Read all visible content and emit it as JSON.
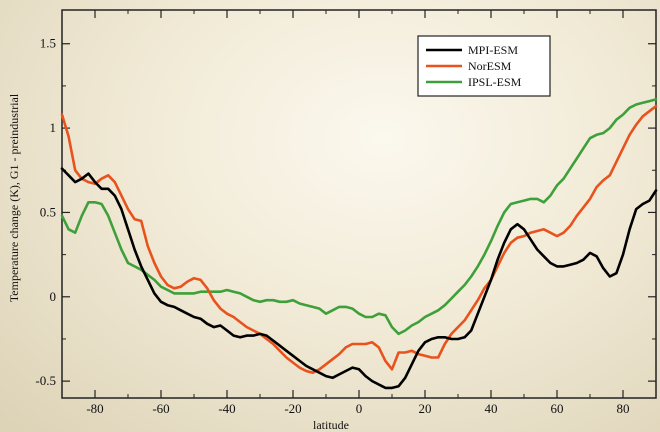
{
  "chart_data": {
    "type": "line",
    "title": "",
    "xlabel": "latitude",
    "ylabel": "Temperature change (K), G1 - preindustrial",
    "xlim": [
      -90,
      90
    ],
    "ylim": [
      -0.6,
      1.7
    ],
    "x_ticks": [
      -80,
      -60,
      -40,
      -20,
      0,
      20,
      40,
      60,
      80
    ],
    "x_tick_labels": [
      "-80",
      "-60",
      "-40",
      "-20",
      "0",
      "20",
      "40",
      "60",
      "80"
    ],
    "y_ticks": [
      -0.5,
      0,
      0.5,
      1,
      1.5
    ],
    "y_tick_labels": [
      "-0.5",
      "0",
      "0.5",
      "1",
      "1.5"
    ],
    "grid": false,
    "legend_position": "top-right",
    "series": [
      {
        "name": "MPI-ESM",
        "color": "#000000",
        "points": [
          [
            -90,
            0.76
          ],
          [
            -88,
            0.72
          ],
          [
            -86,
            0.68
          ],
          [
            -84,
            0.7
          ],
          [
            -82,
            0.73
          ],
          [
            -80,
            0.68
          ],
          [
            -78,
            0.64
          ],
          [
            -76,
            0.64
          ],
          [
            -74,
            0.6
          ],
          [
            -72,
            0.52
          ],
          [
            -70,
            0.4
          ],
          [
            -68,
            0.28
          ],
          [
            -66,
            0.18
          ],
          [
            -64,
            0.1
          ],
          [
            -62,
            0.02
          ],
          [
            -60,
            -0.03
          ],
          [
            -58,
            -0.05
          ],
          [
            -56,
            -0.06
          ],
          [
            -54,
            -0.08
          ],
          [
            -52,
            -0.1
          ],
          [
            -50,
            -0.12
          ],
          [
            -48,
            -0.13
          ],
          [
            -46,
            -0.16
          ],
          [
            -44,
            -0.18
          ],
          [
            -42,
            -0.17
          ],
          [
            -40,
            -0.2
          ],
          [
            -38,
            -0.23
          ],
          [
            -36,
            -0.24
          ],
          [
            -34,
            -0.23
          ],
          [
            -32,
            -0.23
          ],
          [
            -30,
            -0.22
          ],
          [
            -28,
            -0.23
          ],
          [
            -26,
            -0.26
          ],
          [
            -24,
            -0.29
          ],
          [
            -22,
            -0.32
          ],
          [
            -20,
            -0.35
          ],
          [
            -18,
            -0.38
          ],
          [
            -16,
            -0.41
          ],
          [
            -14,
            -0.43
          ],
          [
            -12,
            -0.45
          ],
          [
            -10,
            -0.47
          ],
          [
            -8,
            -0.48
          ],
          [
            -6,
            -0.46
          ],
          [
            -4,
            -0.44
          ],
          [
            -2,
            -0.42
          ],
          [
            0,
            -0.43
          ],
          [
            2,
            -0.47
          ],
          [
            4,
            -0.5
          ],
          [
            6,
            -0.52
          ],
          [
            8,
            -0.54
          ],
          [
            10,
            -0.54
          ],
          [
            12,
            -0.53
          ],
          [
            14,
            -0.48
          ],
          [
            16,
            -0.4
          ],
          [
            18,
            -0.32
          ],
          [
            20,
            -0.27
          ],
          [
            22,
            -0.25
          ],
          [
            24,
            -0.24
          ],
          [
            26,
            -0.24
          ],
          [
            28,
            -0.25
          ],
          [
            30,
            -0.25
          ],
          [
            32,
            -0.24
          ],
          [
            34,
            -0.2
          ],
          [
            36,
            -0.1
          ],
          [
            38,
            0.0
          ],
          [
            40,
            0.1
          ],
          [
            42,
            0.22
          ],
          [
            44,
            0.32
          ],
          [
            46,
            0.4
          ],
          [
            48,
            0.43
          ],
          [
            50,
            0.4
          ],
          [
            52,
            0.34
          ],
          [
            54,
            0.28
          ],
          [
            56,
            0.24
          ],
          [
            58,
            0.2
          ],
          [
            60,
            0.18
          ],
          [
            62,
            0.18
          ],
          [
            64,
            0.19
          ],
          [
            66,
            0.2
          ],
          [
            68,
            0.22
          ],
          [
            70,
            0.26
          ],
          [
            72,
            0.24
          ],
          [
            74,
            0.17
          ],
          [
            76,
            0.12
          ],
          [
            78,
            0.14
          ],
          [
            80,
            0.25
          ],
          [
            82,
            0.4
          ],
          [
            84,
            0.52
          ],
          [
            86,
            0.55
          ],
          [
            88,
            0.57
          ],
          [
            90,
            0.63
          ]
        ]
      },
      {
        "name": "NorESM",
        "color": "#e8521d",
        "points": [
          [
            -90,
            1.08
          ],
          [
            -88,
            0.95
          ],
          [
            -86,
            0.75
          ],
          [
            -84,
            0.7
          ],
          [
            -82,
            0.68
          ],
          [
            -80,
            0.67
          ],
          [
            -78,
            0.7
          ],
          [
            -76,
            0.72
          ],
          [
            -74,
            0.68
          ],
          [
            -72,
            0.6
          ],
          [
            -70,
            0.52
          ],
          [
            -68,
            0.46
          ],
          [
            -66,
            0.45
          ],
          [
            -64,
            0.3
          ],
          [
            -62,
            0.2
          ],
          [
            -60,
            0.12
          ],
          [
            -58,
            0.07
          ],
          [
            -56,
            0.05
          ],
          [
            -54,
            0.06
          ],
          [
            -52,
            0.09
          ],
          [
            -50,
            0.11
          ],
          [
            -48,
            0.1
          ],
          [
            -46,
            0.05
          ],
          [
            -44,
            -0.02
          ],
          [
            -42,
            -0.07
          ],
          [
            -40,
            -0.1
          ],
          [
            -38,
            -0.12
          ],
          [
            -36,
            -0.15
          ],
          [
            -34,
            -0.18
          ],
          [
            -32,
            -0.2
          ],
          [
            -30,
            -0.22
          ],
          [
            -28,
            -0.25
          ],
          [
            -26,
            -0.28
          ],
          [
            -24,
            -0.32
          ],
          [
            -22,
            -0.36
          ],
          [
            -20,
            -0.39
          ],
          [
            -18,
            -0.42
          ],
          [
            -16,
            -0.44
          ],
          [
            -14,
            -0.45
          ],
          [
            -12,
            -0.43
          ],
          [
            -10,
            -0.4
          ],
          [
            -8,
            -0.37
          ],
          [
            -6,
            -0.34
          ],
          [
            -4,
            -0.3
          ],
          [
            -2,
            -0.28
          ],
          [
            0,
            -0.28
          ],
          [
            2,
            -0.28
          ],
          [
            4,
            -0.27
          ],
          [
            6,
            -0.3
          ],
          [
            8,
            -0.38
          ],
          [
            10,
            -0.43
          ],
          [
            12,
            -0.33
          ],
          [
            14,
            -0.33
          ],
          [
            16,
            -0.32
          ],
          [
            18,
            -0.34
          ],
          [
            20,
            -0.35
          ],
          [
            22,
            -0.36
          ],
          [
            24,
            -0.36
          ],
          [
            26,
            -0.28
          ],
          [
            28,
            -0.22
          ],
          [
            30,
            -0.18
          ],
          [
            32,
            -0.14
          ],
          [
            34,
            -0.08
          ],
          [
            36,
            -0.02
          ],
          [
            38,
            0.05
          ],
          [
            40,
            0.1
          ],
          [
            42,
            0.18
          ],
          [
            44,
            0.26
          ],
          [
            46,
            0.32
          ],
          [
            48,
            0.35
          ],
          [
            50,
            0.36
          ],
          [
            52,
            0.38
          ],
          [
            54,
            0.39
          ],
          [
            56,
            0.4
          ],
          [
            58,
            0.38
          ],
          [
            60,
            0.36
          ],
          [
            62,
            0.38
          ],
          [
            64,
            0.42
          ],
          [
            66,
            0.48
          ],
          [
            68,
            0.53
          ],
          [
            70,
            0.58
          ],
          [
            72,
            0.65
          ],
          [
            74,
            0.69
          ],
          [
            76,
            0.72
          ],
          [
            78,
            0.8
          ],
          [
            80,
            0.88
          ],
          [
            82,
            0.96
          ],
          [
            84,
            1.02
          ],
          [
            86,
            1.07
          ],
          [
            88,
            1.1
          ],
          [
            90,
            1.13
          ]
        ]
      },
      {
        "name": "IPSL-ESM",
        "color": "#3ea03a",
        "points": [
          [
            -90,
            0.48
          ],
          [
            -88,
            0.4
          ],
          [
            -86,
            0.38
          ],
          [
            -84,
            0.48
          ],
          [
            -82,
            0.56
          ],
          [
            -80,
            0.56
          ],
          [
            -78,
            0.55
          ],
          [
            -76,
            0.48
          ],
          [
            -74,
            0.38
          ],
          [
            -72,
            0.28
          ],
          [
            -70,
            0.2
          ],
          [
            -68,
            0.18
          ],
          [
            -66,
            0.16
          ],
          [
            -64,
            0.13
          ],
          [
            -62,
            0.1
          ],
          [
            -60,
            0.06
          ],
          [
            -58,
            0.04
          ],
          [
            -56,
            0.02
          ],
          [
            -54,
            0.02
          ],
          [
            -52,
            0.02
          ],
          [
            -50,
            0.02
          ],
          [
            -48,
            0.03
          ],
          [
            -46,
            0.03
          ],
          [
            -44,
            0.03
          ],
          [
            -42,
            0.03
          ],
          [
            -40,
            0.04
          ],
          [
            -38,
            0.03
          ],
          [
            -36,
            0.02
          ],
          [
            -34,
            0.0
          ],
          [
            -32,
            -0.02
          ],
          [
            -30,
            -0.03
          ],
          [
            -28,
            -0.02
          ],
          [
            -26,
            -0.02
          ],
          [
            -24,
            -0.03
          ],
          [
            -22,
            -0.03
          ],
          [
            -20,
            -0.02
          ],
          [
            -18,
            -0.04
          ],
          [
            -16,
            -0.05
          ],
          [
            -14,
            -0.06
          ],
          [
            -12,
            -0.07
          ],
          [
            -10,
            -0.1
          ],
          [
            -8,
            -0.08
          ],
          [
            -6,
            -0.06
          ],
          [
            -4,
            -0.06
          ],
          [
            -2,
            -0.07
          ],
          [
            0,
            -0.1
          ],
          [
            2,
            -0.12
          ],
          [
            4,
            -0.12
          ],
          [
            6,
            -0.1
          ],
          [
            8,
            -0.11
          ],
          [
            10,
            -0.18
          ],
          [
            12,
            -0.22
          ],
          [
            14,
            -0.2
          ],
          [
            16,
            -0.17
          ],
          [
            18,
            -0.15
          ],
          [
            20,
            -0.12
          ],
          [
            22,
            -0.1
          ],
          [
            24,
            -0.08
          ],
          [
            26,
            -0.05
          ],
          [
            28,
            -0.01
          ],
          [
            30,
            0.03
          ],
          [
            32,
            0.07
          ],
          [
            34,
            0.12
          ],
          [
            36,
            0.18
          ],
          [
            38,
            0.25
          ],
          [
            40,
            0.33
          ],
          [
            42,
            0.42
          ],
          [
            44,
            0.5
          ],
          [
            46,
            0.55
          ],
          [
            48,
            0.56
          ],
          [
            50,
            0.57
          ],
          [
            52,
            0.58
          ],
          [
            54,
            0.58
          ],
          [
            56,
            0.56
          ],
          [
            58,
            0.6
          ],
          [
            60,
            0.66
          ],
          [
            62,
            0.7
          ],
          [
            64,
            0.76
          ],
          [
            66,
            0.82
          ],
          [
            68,
            0.88
          ],
          [
            70,
            0.94
          ],
          [
            72,
            0.96
          ],
          [
            74,
            0.97
          ],
          [
            76,
            1.0
          ],
          [
            78,
            1.05
          ],
          [
            80,
            1.08
          ],
          [
            82,
            1.12
          ],
          [
            84,
            1.14
          ],
          [
            86,
            1.15
          ],
          [
            88,
            1.16
          ],
          [
            90,
            1.17
          ]
        ]
      }
    ]
  }
}
